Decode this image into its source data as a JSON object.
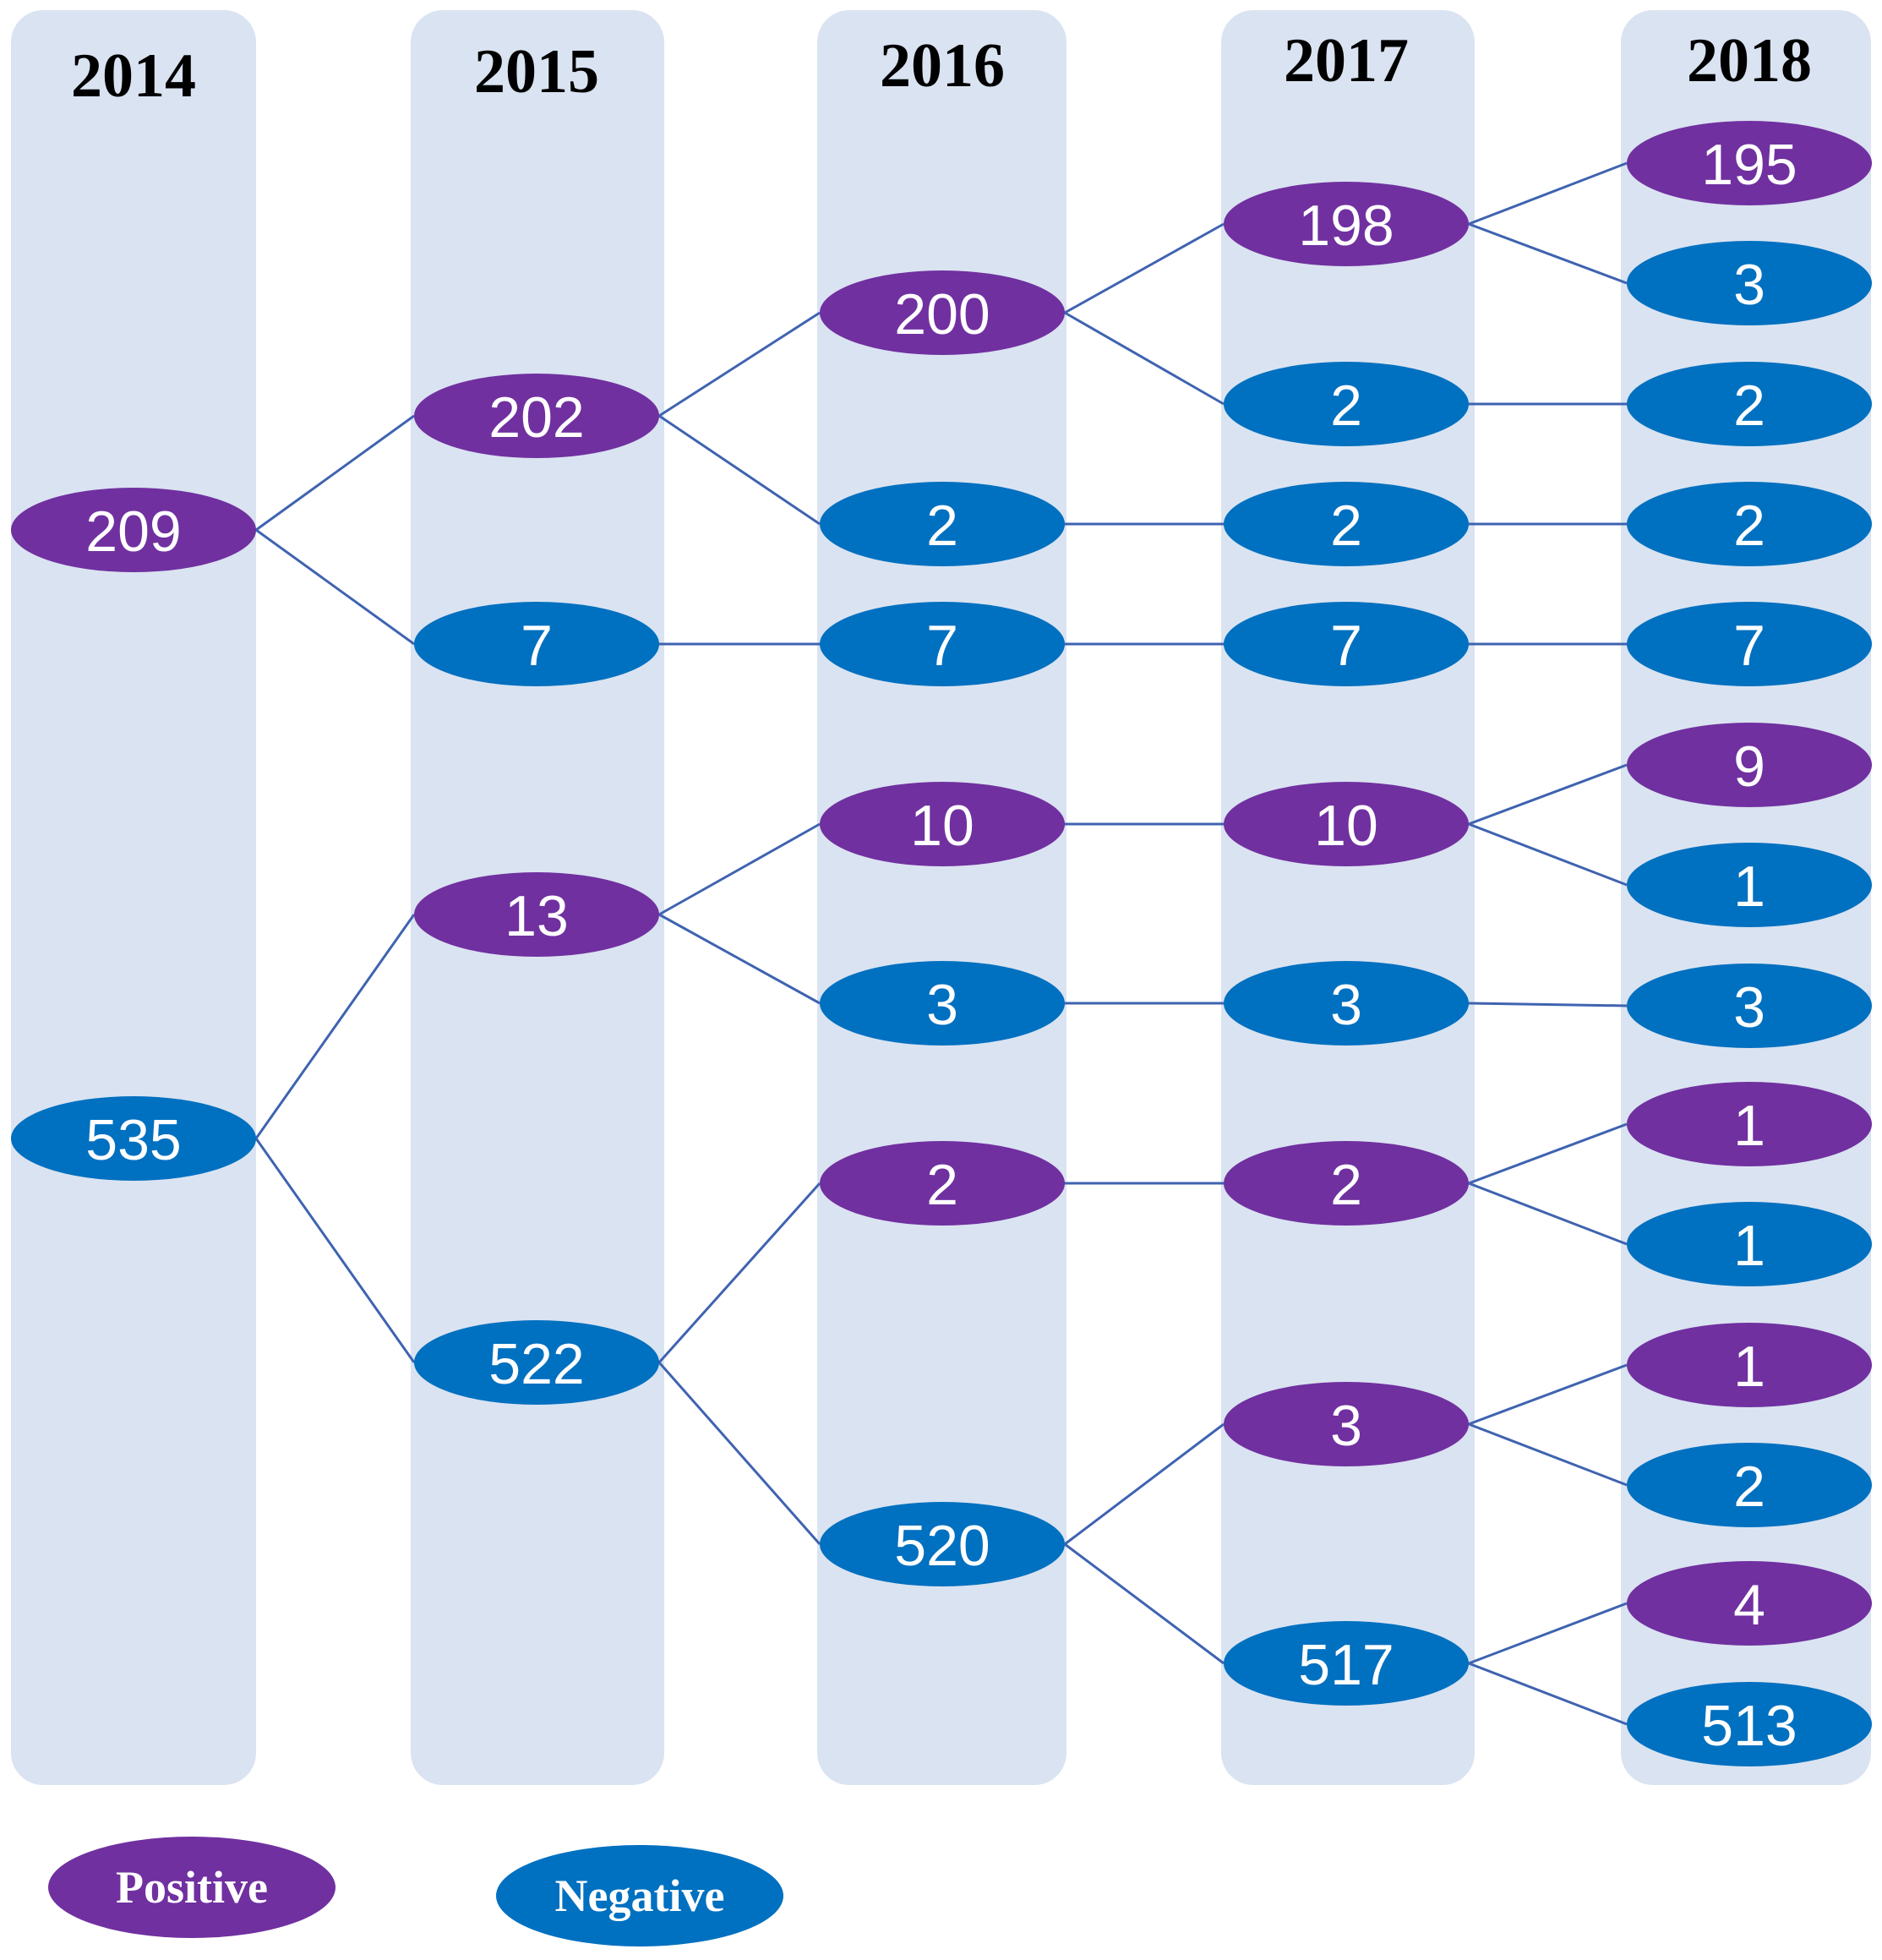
{
  "colors": {
    "positive": "#7030a0",
    "negative": "#0070c0",
    "column_bg": "#dae3f1",
    "edge": "#3f63b0",
    "legend_positive": "#7030a0",
    "legend_negative": "#0070c0"
  },
  "years": [
    "2014",
    "2015",
    "2016",
    "2017",
    "2018"
  ],
  "nodes": [
    {
      "id": "a1",
      "col": 0,
      "value": "209",
      "status": "positive"
    },
    {
      "id": "a2",
      "col": 0,
      "value": "535",
      "status": "negative"
    },
    {
      "id": "b1",
      "col": 1,
      "value": "202",
      "status": "positive"
    },
    {
      "id": "b2",
      "col": 1,
      "value": "7",
      "status": "negative"
    },
    {
      "id": "b3",
      "col": 1,
      "value": "13",
      "status": "positive"
    },
    {
      "id": "b4",
      "col": 1,
      "value": "522",
      "status": "negative"
    },
    {
      "id": "c1",
      "col": 2,
      "value": "200",
      "status": "positive"
    },
    {
      "id": "c2",
      "col": 2,
      "value": "2",
      "status": "negative"
    },
    {
      "id": "c3",
      "col": 2,
      "value": "7",
      "status": "negative"
    },
    {
      "id": "c4",
      "col": 2,
      "value": "10",
      "status": "positive"
    },
    {
      "id": "c5",
      "col": 2,
      "value": "3",
      "status": "negative"
    },
    {
      "id": "c6",
      "col": 2,
      "value": "2",
      "status": "positive"
    },
    {
      "id": "c7",
      "col": 2,
      "value": "520",
      "status": "negative"
    },
    {
      "id": "d1",
      "col": 3,
      "value": "198",
      "status": "positive"
    },
    {
      "id": "d2",
      "col": 3,
      "value": "2",
      "status": "negative"
    },
    {
      "id": "d3",
      "col": 3,
      "value": "2",
      "status": "negative"
    },
    {
      "id": "d4",
      "col": 3,
      "value": "7",
      "status": "negative"
    },
    {
      "id": "d5",
      "col": 3,
      "value": "10",
      "status": "positive"
    },
    {
      "id": "d6",
      "col": 3,
      "value": "3",
      "status": "negative"
    },
    {
      "id": "d7",
      "col": 3,
      "value": "2",
      "status": "positive"
    },
    {
      "id": "d8",
      "col": 3,
      "value": "3",
      "status": "positive"
    },
    {
      "id": "d9",
      "col": 3,
      "value": "517",
      "status": "negative"
    },
    {
      "id": "e1",
      "col": 4,
      "value": "195",
      "status": "positive"
    },
    {
      "id": "e2",
      "col": 4,
      "value": "3",
      "status": "negative"
    },
    {
      "id": "e3",
      "col": 4,
      "value": "2",
      "status": "negative"
    },
    {
      "id": "e4",
      "col": 4,
      "value": "2",
      "status": "negative"
    },
    {
      "id": "e5",
      "col": 4,
      "value": "7",
      "status": "negative"
    },
    {
      "id": "e6",
      "col": 4,
      "value": "9",
      "status": "positive"
    },
    {
      "id": "e7",
      "col": 4,
      "value": "1",
      "status": "negative"
    },
    {
      "id": "e8",
      "col": 4,
      "value": "3",
      "status": "negative"
    },
    {
      "id": "e9",
      "col": 4,
      "value": "1",
      "status": "positive"
    },
    {
      "id": "e10",
      "col": 4,
      "value": "1",
      "status": "negative"
    },
    {
      "id": "e11",
      "col": 4,
      "value": "1",
      "status": "positive"
    },
    {
      "id": "e12",
      "col": 4,
      "value": "2",
      "status": "negative"
    },
    {
      "id": "e13",
      "col": 4,
      "value": "4",
      "status": "positive"
    },
    {
      "id": "e14",
      "col": 4,
      "value": "513",
      "status": "negative"
    }
  ],
  "edges": [
    [
      "a1",
      "b1"
    ],
    [
      "a1",
      "b2"
    ],
    [
      "a2",
      "b3"
    ],
    [
      "a2",
      "b4"
    ],
    [
      "b1",
      "c1"
    ],
    [
      "b1",
      "c2"
    ],
    [
      "b2",
      "c3"
    ],
    [
      "b3",
      "c4"
    ],
    [
      "b3",
      "c5"
    ],
    [
      "b4",
      "c6"
    ],
    [
      "b4",
      "c7"
    ],
    [
      "c1",
      "d1"
    ],
    [
      "c1",
      "d2"
    ],
    [
      "c2",
      "d3"
    ],
    [
      "c3",
      "d4"
    ],
    [
      "c4",
      "d5"
    ],
    [
      "c5",
      "d6"
    ],
    [
      "c6",
      "d7"
    ],
    [
      "c7",
      "d8"
    ],
    [
      "c7",
      "d9"
    ],
    [
      "d1",
      "e1"
    ],
    [
      "d1",
      "e2"
    ],
    [
      "d2",
      "e3"
    ],
    [
      "d3",
      "e4"
    ],
    [
      "d4",
      "e5"
    ],
    [
      "d5",
      "e6"
    ],
    [
      "d5",
      "e7"
    ],
    [
      "d6",
      "e8"
    ],
    [
      "d7",
      "e9"
    ],
    [
      "d7",
      "e10"
    ],
    [
      "d8",
      "e11"
    ],
    [
      "d8",
      "e12"
    ],
    [
      "d9",
      "e13"
    ],
    [
      "d9",
      "e14"
    ]
  ],
  "legend": {
    "positive_label": "Positive",
    "negative_label": "Negative"
  }
}
